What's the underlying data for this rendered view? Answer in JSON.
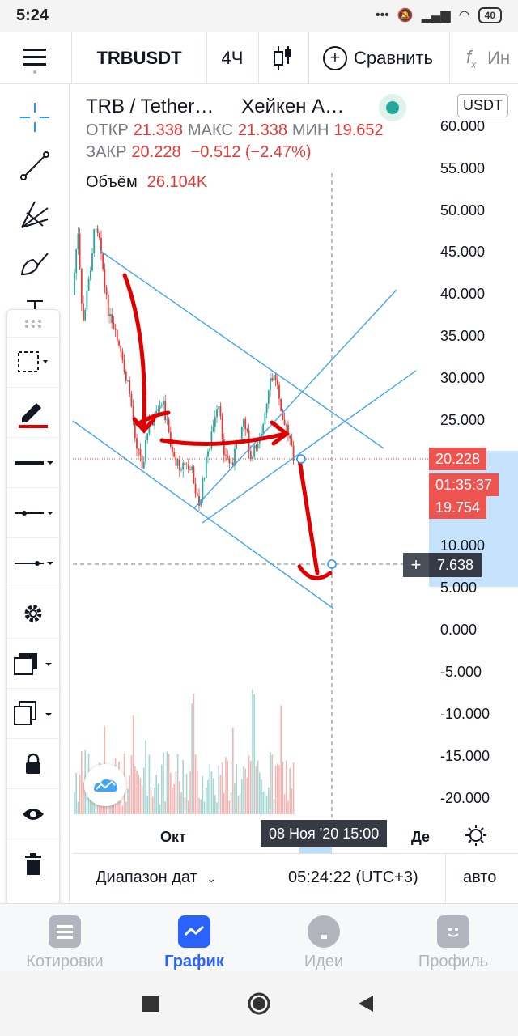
{
  "status_bar": {
    "time": "5:24",
    "battery": "40"
  },
  "toolbar": {
    "symbol": "TRBUSDT",
    "interval": "4Ч",
    "compare_label": "Сравнить",
    "indicators_label": "Ин"
  },
  "legend": {
    "title": "TRB / Tether…",
    "chart_style": "Хейкен А…",
    "open_label": "ОТКР",
    "open": "21.338",
    "high_label": "МАКС",
    "high": "21.338",
    "low_label": "МИН",
    "low": "19.652",
    "close_label": "ЗАКР",
    "close": "20.228",
    "change": "−0.512 (−2.47%)",
    "volume_label": "Объём",
    "volume": "26.104K"
  },
  "currency": "USDT",
  "price_axis": {
    "ticks": [
      "60.000",
      "55.000",
      "50.000",
      "45.000",
      "40.000",
      "35.000",
      "30.000",
      "25.000",
      "20.228",
      "10.000",
      "5.000",
      "0.000",
      "-5.000",
      "-10.000",
      "-15.000",
      "-20.000"
    ]
  },
  "price_tags": {
    "last_price": "20.228",
    "countdown": "01:35:37",
    "prev_price": "19.754",
    "crosshair_price": "7.638"
  },
  "time_axis": {
    "labels": [
      "Окт",
      "Де"
    ],
    "crosshair_time": "08 Ноя '20   15:00"
  },
  "range_bar": {
    "date_range": "Диапазон дат",
    "clock": "05:24:22 (UTC+3)",
    "auto": "авто"
  },
  "tabs": [
    {
      "label": "Котировки",
      "icon": "list-icon"
    },
    {
      "label": "График",
      "icon": "chart-icon"
    },
    {
      "label": "Идеи",
      "icon": "lightbulb-icon"
    },
    {
      "label": "Профиль",
      "icon": "smiley-icon"
    }
  ],
  "colors": {
    "accent": "#2962ff",
    "down": "#e53935",
    "up": "#26a69a",
    "trendline": "#42a5f5",
    "annotation": "#e00000"
  }
}
